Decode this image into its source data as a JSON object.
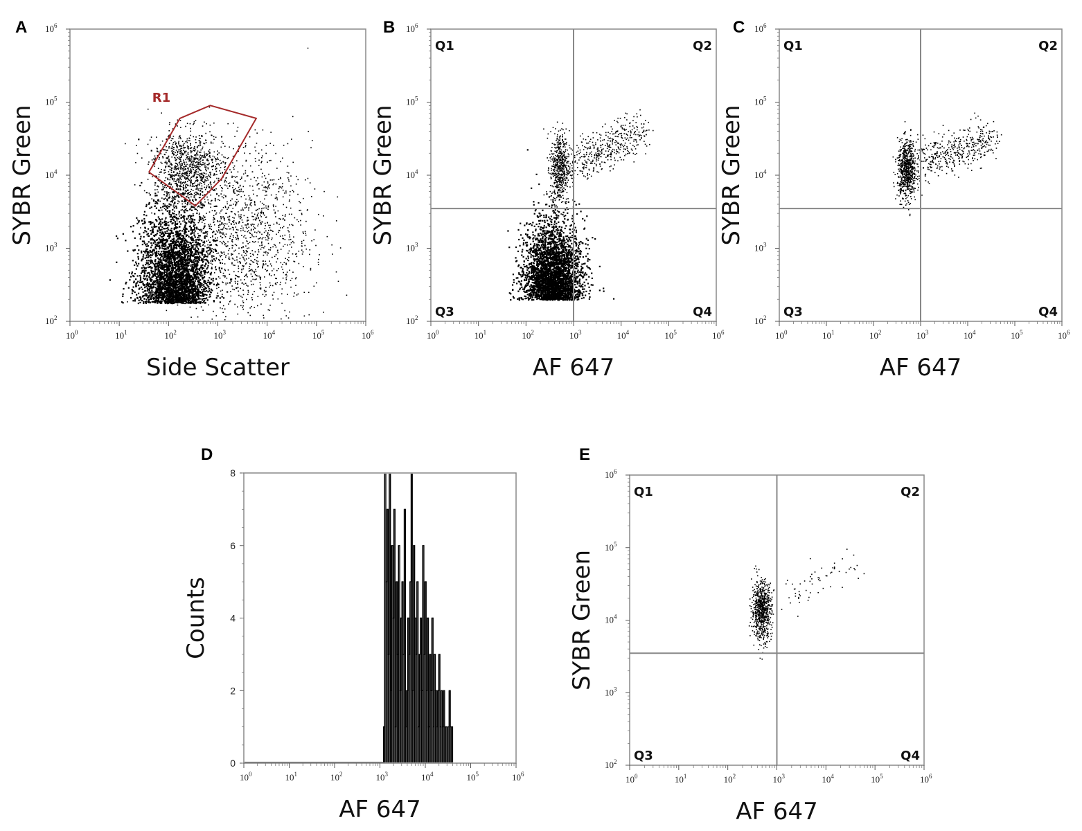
{
  "chart_data": [
    {
      "panel": "A",
      "type": "scatter",
      "xlabel": "Side Scatter",
      "ylabel": "SYBR Green",
      "x_scale": "log",
      "y_scale": "log",
      "xlim": [
        1,
        1000000
      ],
      "ylim": [
        100,
        1000000
      ],
      "x_ticks": [
        1,
        10,
        100,
        1000,
        10000,
        100000,
        1000000
      ],
      "y_ticks": [
        100,
        1000,
        10000,
        100000,
        1000000
      ],
      "gate": {
        "name": "R1",
        "color": "#a52a2a",
        "vertices": [
          [
            40,
            11000
          ],
          [
            170,
            60000
          ],
          [
            700,
            90000
          ],
          [
            6000,
            60000
          ],
          [
            1200,
            9000
          ],
          [
            350,
            3800
          ],
          [
            40,
            11000
          ]
        ]
      },
      "populations": [
        {
          "description": "dense",
          "x_center": 130,
          "y_center": 180,
          "x_spread_decades": 0.35,
          "y_spread_decades": 0.35
        },
        {
          "description": "gated",
          "x_center": 250,
          "y_center": 13000,
          "x_spread_decades": 0.35,
          "y_spread_decades": 0.25
        },
        {
          "description": "diffuse",
          "x_center": 3000,
          "y_center": 1500,
          "x_spread_decades": 0.7,
          "y_spread_decades": 0.6
        }
      ]
    },
    {
      "panel": "B",
      "type": "scatter",
      "xlabel": "AF 647",
      "ylabel": "SYBR Green",
      "x_scale": "log",
      "y_scale": "log",
      "xlim": [
        1,
        1000000
      ],
      "ylim": [
        100,
        1000000
      ],
      "x_ticks": [
        1,
        10,
        100,
        1000,
        10000,
        100000,
        1000000
      ],
      "y_ticks": [
        100,
        1000,
        10000,
        100000,
        1000000
      ],
      "quadrant_x": 1000,
      "quadrant_y": 3500,
      "quadrant_labels": [
        "Q1",
        "Q2",
        "Q3",
        "Q4"
      ],
      "populations": [
        {
          "description": "dense",
          "x_center": 350,
          "y_center": 200,
          "x_spread_decades": 0.3,
          "y_spread_decades": 0.3
        },
        {
          "description": "stem",
          "x_center": 500,
          "y_center": 13000,
          "x_spread_decades": 0.1,
          "y_spread_decades": 0.25
        },
        {
          "description": "diagonal",
          "x_start": 1000,
          "y_start": 15000,
          "x_end": 30000,
          "y_end": 40000
        }
      ]
    },
    {
      "panel": "C",
      "type": "scatter",
      "xlabel": "AF 647",
      "ylabel": "SYBR Green",
      "x_scale": "log",
      "y_scale": "log",
      "xlim": [
        1,
        1000000
      ],
      "ylim": [
        100,
        1000000
      ],
      "x_ticks": [
        1,
        10,
        100,
        1000,
        10000,
        100000,
        1000000
      ],
      "y_ticks": [
        100,
        1000,
        10000,
        100000,
        1000000
      ],
      "quadrant_x": 1000,
      "quadrant_y": 3500,
      "quadrant_labels": [
        "Q1",
        "Q2",
        "Q3",
        "Q4"
      ],
      "populations": [
        {
          "description": "cluster",
          "x_center": 500,
          "y_center": 12000,
          "x_spread_decades": 0.1,
          "y_spread_decades": 0.2
        },
        {
          "description": "diagonal",
          "x_start": 1000,
          "y_start": 17000,
          "x_end": 30000,
          "y_end": 30000
        }
      ]
    },
    {
      "panel": "D",
      "type": "bar",
      "xlabel": "AF 647",
      "ylabel": "Counts",
      "x_scale": "log",
      "xlim": [
        1,
        1000000
      ],
      "ylim": [
        0,
        8
      ],
      "x_ticks": [
        1,
        10,
        100,
        1000,
        10000,
        100000,
        1000000
      ],
      "y_ticks": [
        0,
        2,
        4,
        6,
        8
      ],
      "histogram": {
        "x_start": 1200,
        "x_end": 40000,
        "counts": [
          1,
          8,
          5,
          7,
          3,
          8,
          2,
          6,
          4,
          7,
          1,
          5,
          3,
          6,
          2,
          4,
          5,
          3,
          7,
          1,
          2,
          4,
          3,
          5,
          8,
          2,
          6,
          4,
          3,
          5,
          1,
          3,
          4,
          2,
          6,
          3,
          5,
          2,
          4,
          1,
          3,
          2,
          4,
          1,
          3,
          2,
          1,
          2,
          3,
          1,
          2,
          1,
          2,
          1,
          1,
          0,
          1,
          2,
          1,
          1
        ]
      }
    },
    {
      "panel": "E",
      "type": "scatter",
      "xlabel": "AF 647",
      "ylabel": "SYBR Green",
      "x_scale": "log",
      "y_scale": "log",
      "xlim": [
        1,
        1000000
      ],
      "ylim": [
        100,
        1000000
      ],
      "x_ticks": [
        1,
        10,
        100,
        1000,
        10000,
        100000,
        1000000
      ],
      "y_ticks": [
        100,
        1000,
        10000,
        100000,
        1000000
      ],
      "quadrant_x": 1000,
      "quadrant_y": 3500,
      "quadrant_labels": [
        "Q1",
        "Q2",
        "Q3",
        "Q4"
      ],
      "populations": [
        {
          "description": "cluster",
          "x_center": 480,
          "y_center": 14000,
          "x_spread_decades": 0.1,
          "y_spread_decades": 0.2
        },
        {
          "description": "sparse",
          "x_start": 1200,
          "y_start": 20000,
          "x_end": 50000,
          "y_end": 70000
        }
      ]
    }
  ]
}
